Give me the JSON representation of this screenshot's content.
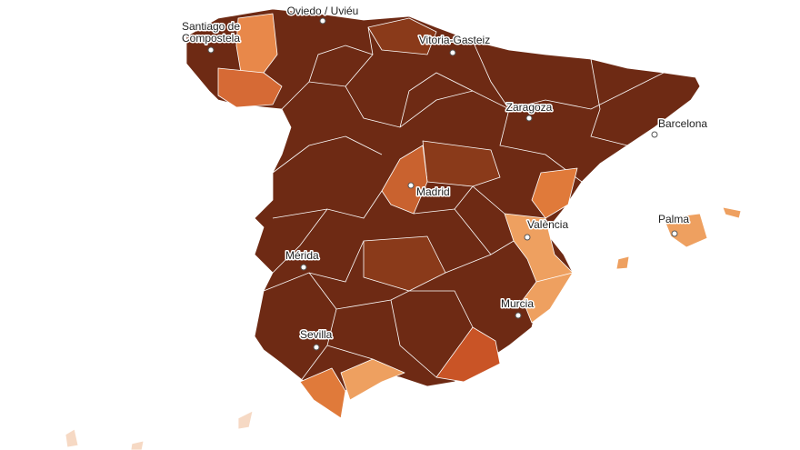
{
  "cities": [
    {
      "lines": [
        "Oviedo / Uviéu"
      ]
    },
    {
      "lines": [
        "Santiago de",
        "Compostela"
      ]
    },
    {
      "lines": [
        "Vitoria-Gasteiz"
      ]
    },
    {
      "lines": [
        "Zaragoza"
      ]
    },
    {
      "lines": [
        "Barcelona"
      ]
    },
    {
      "lines": [
        "Madrid"
      ]
    },
    {
      "lines": [
        "València"
      ]
    },
    {
      "lines": [
        "Palma"
      ]
    },
    {
      "lines": [
        "Mérida"
      ]
    },
    {
      "lines": [
        "Murcia"
      ]
    },
    {
      "lines": [
        "Sevilla"
      ]
    }
  ]
}
